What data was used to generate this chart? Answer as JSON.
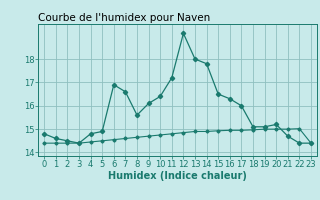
{
  "title": "Courbe de l'humidex pour Naven",
  "xlabel": "Humidex (Indice chaleur)",
  "background_color": "#c8eaea",
  "grid_color": "#8fbfbf",
  "line_color": "#1a7a6e",
  "x": [
    0,
    1,
    2,
    3,
    4,
    5,
    6,
    7,
    8,
    9,
    10,
    11,
    12,
    13,
    14,
    15,
    16,
    17,
    18,
    19,
    20,
    21,
    22,
    23
  ],
  "y_main": [
    14.8,
    14.6,
    14.5,
    14.4,
    14.8,
    14.9,
    16.9,
    16.6,
    15.6,
    16.1,
    16.4,
    17.2,
    19.1,
    18.0,
    17.8,
    16.5,
    16.3,
    16.0,
    15.1,
    15.1,
    15.2,
    14.7,
    14.4,
    14.4
  ],
  "y_flat": [
    14.4,
    14.4,
    14.4,
    14.4,
    14.45,
    14.5,
    14.55,
    14.6,
    14.65,
    14.7,
    14.75,
    14.8,
    14.85,
    14.9,
    14.9,
    14.93,
    14.95,
    14.95,
    14.97,
    15.0,
    15.0,
    15.0,
    15.02,
    14.4
  ],
  "ylim": [
    13.85,
    19.5
  ],
  "yticks": [
    14,
    15,
    16,
    17,
    18
  ],
  "xticks": [
    0,
    1,
    2,
    3,
    4,
    5,
    6,
    7,
    8,
    9,
    10,
    11,
    12,
    13,
    14,
    15,
    16,
    17,
    18,
    19,
    20,
    21,
    22,
    23
  ],
  "title_fontsize": 7.5,
  "label_fontsize": 7,
  "tick_fontsize": 6
}
